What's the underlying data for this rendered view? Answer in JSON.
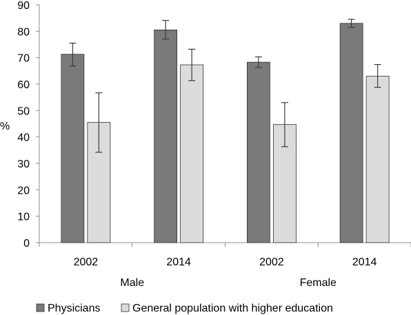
{
  "colors": {
    "physicians": "#7a7a7a",
    "general": "#dcdcdc",
    "bar_stroke": "#2f2f2f",
    "axis": "#8c8c8c",
    "error_bar": "#3a3a3a"
  },
  "chart_data": {
    "type": "bar",
    "ylabel": "%",
    "ylim": [
      0,
      90
    ],
    "y_ticks": [
      "0",
      "10",
      "20",
      "30",
      "40",
      "50",
      "60",
      "70",
      "80",
      "90"
    ],
    "grid": false,
    "legend_position": "bottom",
    "groups": [
      {
        "label": "Male",
        "categories": [
          "2002",
          "2014"
        ]
      },
      {
        "label": "Female",
        "categories": [
          "2002",
          "2014"
        ]
      }
    ],
    "categories": [
      "2002",
      "2014",
      "2002",
      "2014"
    ],
    "series": [
      {
        "name": "Physicians",
        "color_key": "physicians",
        "values": [
          71.3,
          80.5,
          68.3,
          83.0
        ],
        "error_low": [
          66.8,
          77.0,
          66.3,
          81.5
        ],
        "error_high": [
          75.5,
          84.1,
          70.3,
          84.5
        ]
      },
      {
        "name": "General population with higher education",
        "color_key": "general",
        "values": [
          45.5,
          67.3,
          44.7,
          63.0
        ],
        "error_low": [
          34.2,
          61.3,
          36.3,
          58.8
        ],
        "error_high": [
          56.7,
          73.2,
          53.0,
          67.4
        ]
      }
    ]
  }
}
